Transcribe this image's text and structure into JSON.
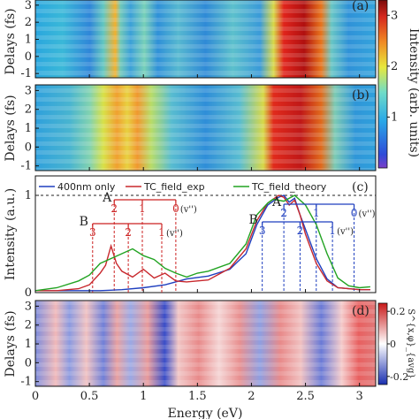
{
  "panels": {
    "a": {
      "label": "(a)",
      "ylabel": "Delays (fs)",
      "yticks": [
        "-1",
        "0",
        "1",
        "2",
        "3"
      ]
    },
    "b": {
      "label": "(b)",
      "ylabel": "Delays (fs)",
      "yticks": [
        "-1",
        "0",
        "1",
        "2",
        "3"
      ]
    },
    "c": {
      "label": "(c)",
      "ylabel": "Intensity (a.u.)",
      "yticks": [
        "0",
        "1"
      ]
    },
    "d": {
      "label": "(d)",
      "ylabel": "Delays (fs)",
      "yticks": [
        "-1",
        "0",
        "1",
        "2",
        "3"
      ]
    }
  },
  "colorbar_top": {
    "label": "Intensity (arb. units)",
    "ticks": [
      "1",
      "2",
      "3"
    ],
    "range": [
      0,
      3.3
    ]
  },
  "colorbar_bottom": {
    "label": "S^{x,φ}_{avg}",
    "ticks": [
      "0.2",
      "0",
      "-0.2"
    ],
    "range": [
      -0.25,
      0.25
    ]
  },
  "xaxis": {
    "label": "Energy (eV)",
    "ticks": [
      "0",
      "0.5",
      "1",
      "1.5",
      "2",
      "2.5",
      "3"
    ],
    "range": [
      0,
      3.15
    ]
  },
  "legend": [
    "400nm only",
    "TC_field_exp",
    "TC_field_theory"
  ],
  "progression_labels": {
    "A_left": "A",
    "B_left": "B",
    "A_right": "A",
    "B_right": "B",
    "vpp": "(v'')",
    "A_left_nums": [
      "2",
      "1",
      "0"
    ],
    "B_left_nums": [
      "3",
      "2",
      "1"
    ],
    "A_right_nums": [
      "2",
      "1",
      "0"
    ],
    "B_right_nums": [
      "3",
      "2",
      "1"
    ]
  },
  "colors": {
    "blue": "#1f3fbf",
    "red": "#c8282d",
    "green": "#22a322",
    "A": "#cc2222",
    "B": "#cc2222",
    "A2": "#1f3fbf",
    "B2": "#1f3fbf"
  },
  "chart_data": {
    "type": "line",
    "x_range": [
      0,
      3.15
    ],
    "y_range": [
      0,
      1.2
    ],
    "reference_line": 1,
    "progressions": {
      "left": {
        "A": [
          0.73,
          0.99,
          1.3
        ],
        "B": [
          0.53,
          0.86,
          1.17
        ]
      },
      "right": {
        "A": [
          2.3,
          2.6,
          2.95
        ],
        "B": [
          2.1,
          2.45,
          2.75
        ]
      }
    },
    "series": [
      {
        "name": "400nm only",
        "color": "#1f3fbf",
        "x": [
          0,
          0.2,
          0.4,
          0.6,
          0.8,
          1.0,
          1.2,
          1.4,
          1.6,
          1.8,
          1.95,
          2.05,
          2.15,
          2.25,
          2.3,
          2.35,
          2.4,
          2.45,
          2.5,
          2.6,
          2.7,
          2.8,
          2.9,
          3.0,
          3.1
        ],
        "y": [
          0.02,
          0.02,
          0.02,
          0.02,
          0.03,
          0.05,
          0.08,
          0.14,
          0.17,
          0.24,
          0.4,
          0.7,
          0.9,
          0.98,
          1.0,
          0.93,
          0.97,
          0.8,
          0.65,
          0.35,
          0.14,
          0.05,
          0.04,
          0.03,
          0.03
        ]
      },
      {
        "name": "TC_field_exp",
        "color": "#c8282d",
        "x": [
          0,
          0.2,
          0.4,
          0.5,
          0.6,
          0.65,
          0.7,
          0.75,
          0.8,
          0.9,
          1.0,
          1.1,
          1.2,
          1.3,
          1.4,
          1.6,
          1.8,
          1.95,
          2.05,
          2.15,
          2.25,
          2.3,
          2.35,
          2.4,
          2.45,
          2.5,
          2.6,
          2.7,
          2.8,
          2.9,
          3.0,
          3.1
        ],
        "y": [
          0.02,
          0.02,
          0.04,
          0.08,
          0.2,
          0.28,
          0.48,
          0.3,
          0.22,
          0.16,
          0.24,
          0.15,
          0.2,
          0.12,
          0.11,
          0.13,
          0.25,
          0.45,
          0.74,
          0.92,
          1.0,
          0.98,
          0.9,
          0.95,
          0.8,
          0.6,
          0.3,
          0.12,
          0.05,
          0.04,
          0.03,
          0.03
        ]
      },
      {
        "name": "TC_field_theory",
        "color": "#22a322",
        "x": [
          0,
          0.2,
          0.4,
          0.5,
          0.6,
          0.7,
          0.8,
          0.9,
          1.0,
          1.1,
          1.2,
          1.3,
          1.4,
          1.5,
          1.6,
          1.8,
          1.95,
          2.05,
          2.15,
          2.2,
          2.3,
          2.35,
          2.4,
          2.5,
          2.6,
          2.7,
          2.8,
          2.9,
          3.0,
          3.1
        ],
        "y": [
          0.02,
          0.05,
          0.12,
          0.18,
          0.3,
          0.35,
          0.4,
          0.45,
          0.38,
          0.34,
          0.25,
          0.2,
          0.16,
          0.2,
          0.22,
          0.3,
          0.5,
          0.8,
          0.92,
          0.96,
          0.94,
          0.97,
          1.0,
          0.9,
          0.7,
          0.4,
          0.15,
          0.07,
          0.05,
          0.06
        ]
      }
    ]
  }
}
